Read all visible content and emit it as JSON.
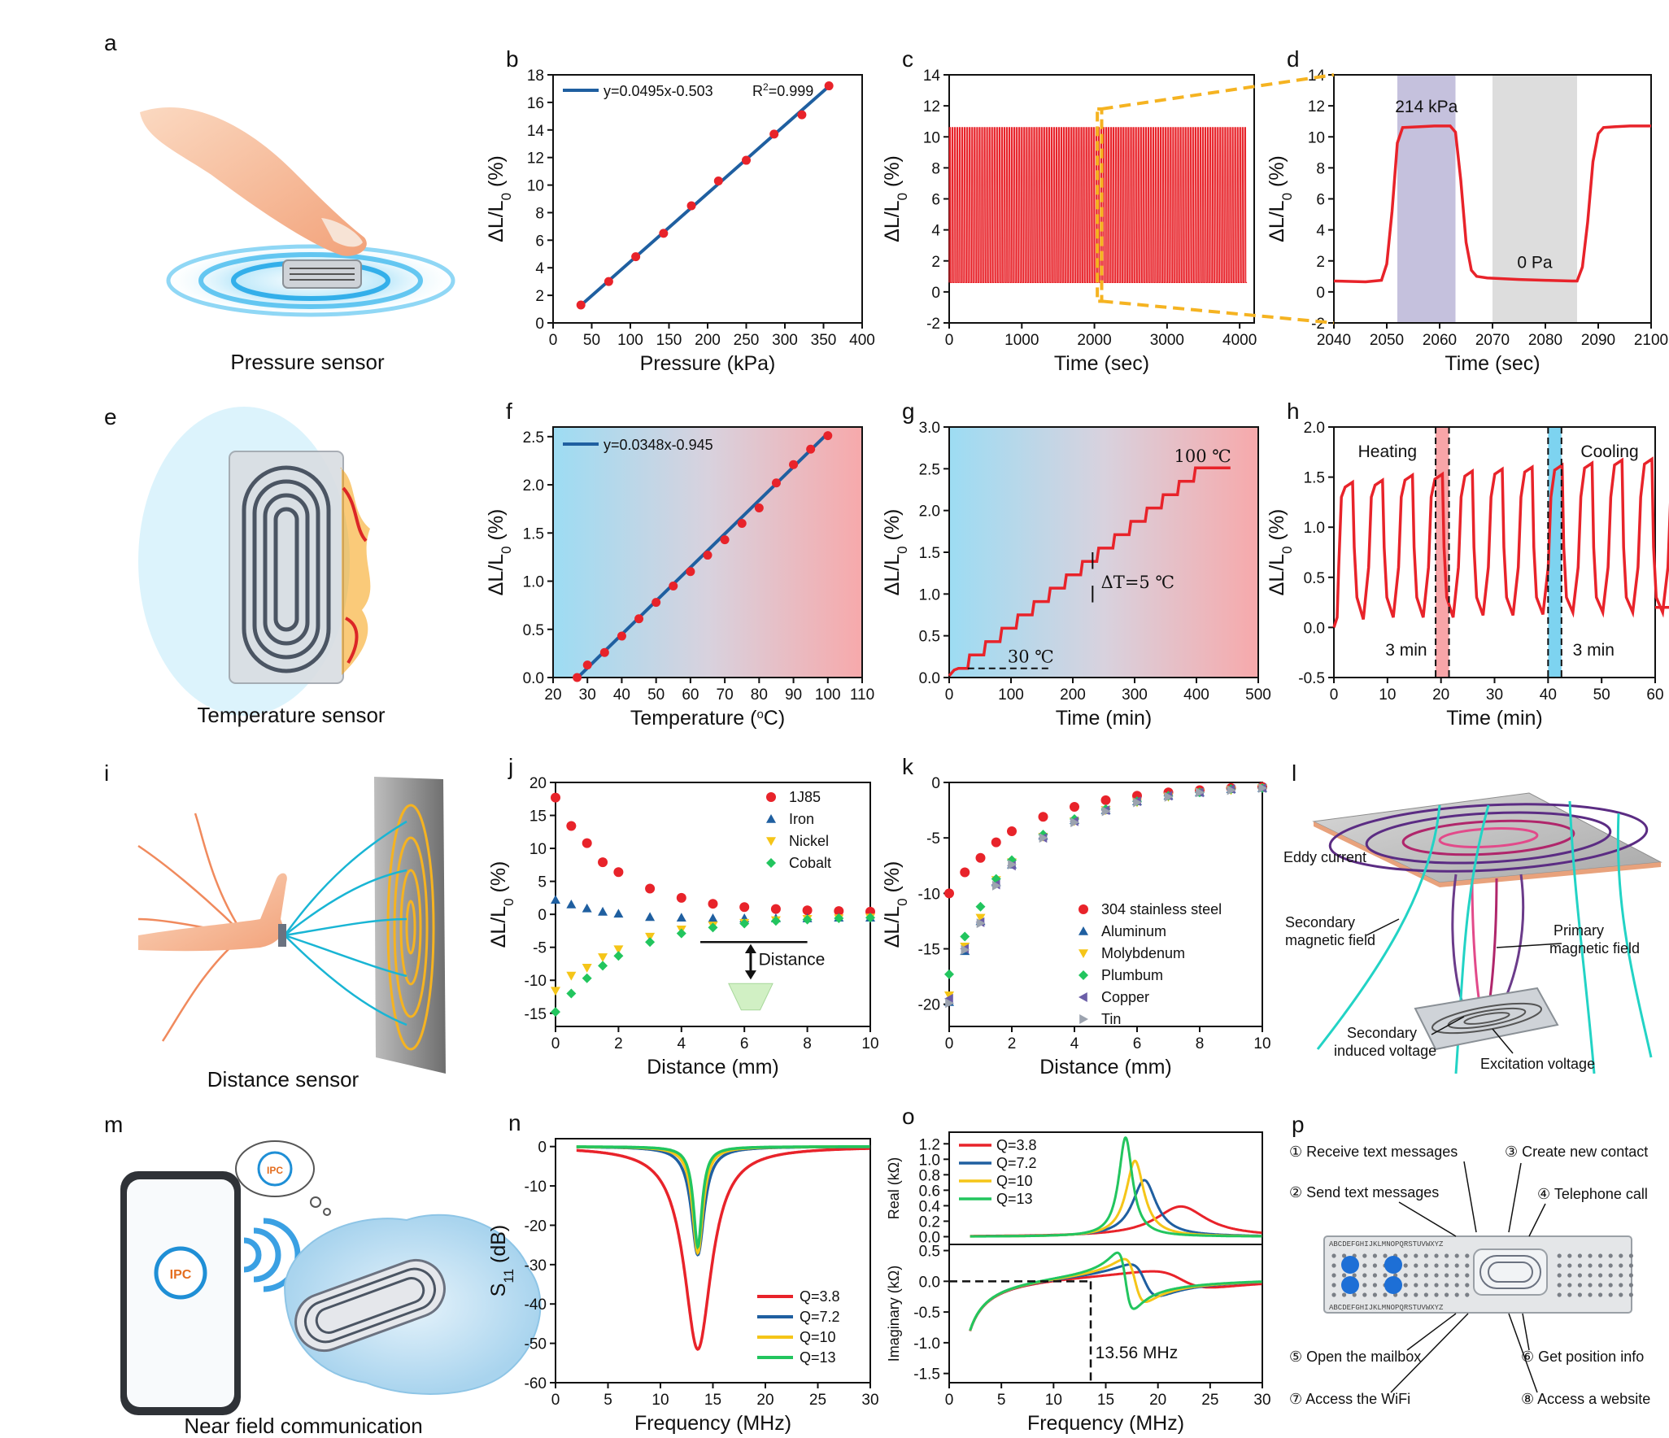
{
  "panels": {
    "a": {
      "label": "a",
      "caption": "Pressure sensor"
    },
    "e": {
      "label": "e",
      "caption": "Temperature sensor"
    },
    "i": {
      "label": "i",
      "caption": "Distance sensor"
    },
    "m": {
      "label": "m",
      "caption": "Near field communication",
      "logo_text": "IPC"
    },
    "l": {
      "label": "l",
      "annotations": [
        "Eddy current",
        "Secondary",
        "magnetic field",
        "Primary",
        "magnetic field",
        "Secondary",
        "induced voltage",
        "Excitation voltage"
      ]
    },
    "p": {
      "label": "p",
      "functions": [
        "① Receive text messages",
        "② Send text messages",
        "③ Create new contact",
        "④ Telephone call",
        "⑤ Open the mailbox",
        "⑥ Get position info",
        "⑦ Access the WiFi",
        "⑧ Access a website"
      ],
      "board_letters": "ABCDEFGHIJKLMNOPQRSTUVWXYZ"
    }
  },
  "colors": {
    "red": "#e8232a",
    "blue": "#1f5fa0",
    "gold": "#f5c518",
    "green": "#22c55e",
    "purple": "#6b5ea8",
    "gray": "#9ca3af",
    "cyan": "#7dd3f0",
    "pink": "#f8a5a8",
    "accent_orange": "#f5b321"
  },
  "chart_data": [
    {
      "id": "b",
      "label": "b",
      "type": "scatter",
      "title": "",
      "xlabel": "Pressure (kPa)",
      "ylabel_parts": [
        "ΔL/L",
        "0",
        "(%)"
      ],
      "xlim": [
        0,
        400
      ],
      "ylim": [
        0,
        18
      ],
      "xticks": [
        "0",
        "50",
        "100",
        "150",
        "200",
        "250",
        "300",
        "350",
        "400"
      ],
      "yticks": [
        "0",
        "2",
        "4",
        "6",
        "8",
        "10",
        "12",
        "14",
        "16",
        "18"
      ],
      "fit": {
        "slope": 0.0495,
        "intercept": -0.503,
        "x_range": [
          36,
          357
        ]
      },
      "legend": {
        "fit_text": "y=0.0495x-0.503",
        "r2_prefix": "R",
        "r2_sup": "2",
        "r2_suffix": "=0.999"
      },
      "series": [
        {
          "name": "data",
          "x": [
            36,
            72,
            107,
            143,
            179,
            214,
            250,
            286,
            322,
            357
          ],
          "y": [
            1.3,
            3.0,
            4.8,
            6.5,
            8.5,
            10.3,
            11.8,
            13.7,
            15.1,
            17.2
          ]
        }
      ]
    },
    {
      "id": "c",
      "label": "c",
      "type": "line",
      "xlabel": "Time (sec)",
      "ylabel_parts": [
        "ΔL/L",
        "0",
        "(%)"
      ],
      "xlim": [
        0,
        4200
      ],
      "ylim": [
        -2,
        14
      ],
      "xticks": [
        "0",
        "1000",
        "2000",
        "3000",
        "4000"
      ],
      "yticks": [
        "-2",
        "0",
        "2",
        "4",
        "6",
        "8",
        "10",
        "12",
        "14"
      ],
      "cycles": 120,
      "x_range": [
        0,
        4100
      ],
      "high": 10.6,
      "low": 0.6,
      "zoom_window": [
        2040,
        2100
      ]
    },
    {
      "id": "d",
      "label": "d",
      "type": "line",
      "xlabel": "Time (sec)",
      "ylabel_parts": [
        "ΔL/L",
        "0",
        "(%)"
      ],
      "xlim": [
        2040,
        2100
      ],
      "ylim": [
        -2,
        14
      ],
      "xticks": [
        "2040",
        "2050",
        "2060",
        "2070",
        "2080",
        "2090",
        "2100"
      ],
      "yticks": [
        "-2",
        "0",
        "2",
        "4",
        "6",
        "8",
        "10",
        "12",
        "14"
      ],
      "annotations": [
        "214 kPa",
        "0 Pa"
      ],
      "shade_load": [
        2052,
        2063
      ],
      "shade_unload": [
        2070,
        2086
      ],
      "series": [
        {
          "name": "response",
          "x": [
            2040,
            2046,
            2049,
            2050,
            2051,
            2052,
            2053,
            2056,
            2059,
            2062,
            2063,
            2064,
            2065,
            2066,
            2067,
            2069,
            2075,
            2080,
            2085,
            2086,
            2087,
            2088,
            2089,
            2090,
            2091,
            2093,
            2096,
            2100
          ],
          "y": [
            0.7,
            0.65,
            0.75,
            1.8,
            5.2,
            9.6,
            10.6,
            10.65,
            10.7,
            10.7,
            10.3,
            7.2,
            3.2,
            1.4,
            1.0,
            0.9,
            0.8,
            0.75,
            0.7,
            0.7,
            1.6,
            4.5,
            8.4,
            10.2,
            10.6,
            10.65,
            10.7,
            10.7
          ]
        }
      ]
    },
    {
      "id": "f",
      "label": "f",
      "type": "scatter",
      "xlabel_parts": [
        "Temperature (",
        "o",
        "C)"
      ],
      "ylabel_parts": [
        "ΔL/L",
        "0",
        "(%)"
      ],
      "xlim": [
        20,
        110
      ],
      "ylim": [
        0,
        2.6
      ],
      "xticks": [
        "20",
        "30",
        "40",
        "50",
        "60",
        "70",
        "80",
        "90",
        "100",
        "110"
      ],
      "yticks": [
        "0.0",
        "0.5",
        "1.0",
        "1.5",
        "2.0",
        "2.5"
      ],
      "fit": {
        "slope": 0.0348,
        "intercept": -0.945,
        "x_range": [
          27,
          100
        ]
      },
      "legend": {
        "fit_text": "y=0.0348x-0.945"
      },
      "series": [
        {
          "name": "data",
          "x": [
            27,
            30,
            35,
            40,
            45,
            50,
            55,
            60,
            65,
            70,
            75,
            80,
            85,
            90,
            95,
            100
          ],
          "y": [
            0.0,
            0.13,
            0.26,
            0.43,
            0.61,
            0.78,
            0.95,
            1.1,
            1.27,
            1.43,
            1.6,
            1.76,
            2.02,
            2.21,
            2.37,
            2.51
          ]
        }
      ]
    },
    {
      "id": "g",
      "label": "g",
      "type": "line",
      "xlabel": "Time (min)",
      "ylabel_parts": [
        "ΔL/L",
        "0",
        "(%)"
      ],
      "xlim": [
        0,
        500
      ],
      "ylim": [
        0,
        3.0
      ],
      "xticks": [
        "0",
        "100",
        "200",
        "300",
        "400",
        "500"
      ],
      "yticks": [
        "0.0",
        "0.5",
        "1.0",
        "1.5",
        "2.0",
        "2.5",
        "3.0"
      ],
      "annotations": [
        "100 ℃",
        "ΔT=5 ℃",
        "30 ℃"
      ],
      "steps": {
        "count": 15,
        "step_minutes": 29,
        "start": 0.11,
        "end": 2.51,
        "end_time": 455
      }
    },
    {
      "id": "h",
      "label": "h",
      "type": "line",
      "xlabel": "Time (min)",
      "ylabel_parts": [
        "ΔL/L",
        "0",
        "(%)"
      ],
      "xlim": [
        0,
        60
      ],
      "ylim": [
        -0.5,
        2.0
      ],
      "xticks": [
        "0",
        "10",
        "20",
        "30",
        "40",
        "50",
        "60"
      ],
      "yticks": [
        "-0.5",
        "0.0",
        "0.5",
        "1.0",
        "1.5",
        "2.0"
      ],
      "annotations": [
        "Heating",
        "Cooling",
        "3 min",
        "3 min"
      ],
      "heat_window": [
        19,
        21.5
      ],
      "cool_window": [
        40,
        42.5
      ],
      "period": 6.5,
      "peaks": [
        1.45,
        1.47,
        1.52,
        1.53,
        1.56,
        1.58,
        1.6,
        1.62,
        1.64,
        1.67,
        1.68,
        1.7
      ],
      "lows": [
        0.08,
        0.1,
        0.1,
        0.1,
        0.12,
        0.12,
        0.13,
        0.15,
        0.15,
        0.15,
        0.15,
        0.2
      ]
    },
    {
      "id": "j",
      "label": "j",
      "type": "scatter",
      "xlabel": "Distance (mm)",
      "ylabel_parts": [
        "ΔL/L",
        "0",
        "(%)"
      ],
      "xlim": [
        0,
        10
      ],
      "ylim": [
        -17,
        20
      ],
      "xticks": [
        "0",
        "2",
        "4",
        "6",
        "8",
        "10"
      ],
      "yticks": [
        "-15",
        "-10",
        "-5",
        "0",
        "5",
        "10",
        "15",
        "20"
      ],
      "annotations": [
        "Distance"
      ],
      "x": [
        0,
        0.5,
        1,
        1.5,
        2,
        3,
        4,
        5,
        6,
        7,
        8,
        9,
        10
      ],
      "series": [
        {
          "name": "1J85",
          "marker": "circle",
          "color": "#e8232a",
          "values": [
            17.7,
            13.4,
            10.8,
            7.9,
            6.4,
            3.9,
            2.5,
            1.6,
            1.1,
            0.8,
            0.6,
            0.5,
            0.4
          ]
        },
        {
          "name": "Iron",
          "marker": "triangle-up",
          "color": "#1f5fa0",
          "values": [
            2.2,
            1.5,
            0.9,
            0.4,
            0.1,
            -0.4,
            -0.5,
            -0.6,
            -0.6,
            -0.6,
            -0.6,
            -0.5,
            -0.5
          ]
        },
        {
          "name": "Nickel",
          "marker": "triangle-down",
          "color": "#f5c518",
          "values": [
            -11.6,
            -9.3,
            -8.1,
            -6.5,
            -5.3,
            -3.4,
            -2.3,
            -1.7,
            -1.3,
            -0.9,
            -0.7,
            -0.6,
            -0.5
          ]
        },
        {
          "name": "Cobalt",
          "marker": "diamond",
          "color": "#22c55e",
          "values": [
            -14.8,
            -12.0,
            -9.7,
            -7.8,
            -6.3,
            -4.2,
            -2.9,
            -2.0,
            -1.4,
            -1.0,
            -0.8,
            -0.6,
            -0.5
          ]
        }
      ]
    },
    {
      "id": "k",
      "label": "k",
      "type": "scatter",
      "xlabel": "Distance (mm)",
      "ylabel_parts": [
        "ΔL/L",
        "0",
        "(%)"
      ],
      "xlim": [
        0,
        10
      ],
      "ylim": [
        -22,
        0
      ],
      "xticks": [
        "0",
        "2",
        "4",
        "6",
        "8",
        "10"
      ],
      "yticks": [
        "-20",
        "-15",
        "-10",
        "-5",
        "0"
      ],
      "x": [
        0,
        0.5,
        1,
        1.5,
        2,
        3,
        4,
        5,
        6,
        7,
        8,
        9,
        10
      ],
      "series": [
        {
          "name": "304 stainless steel",
          "marker": "circle",
          "color": "#e8232a",
          "values": [
            -10.0,
            -8.1,
            -6.8,
            -5.4,
            -4.4,
            -3.1,
            -2.2,
            -1.6,
            -1.2,
            -0.9,
            -0.7,
            -0.5,
            -0.4
          ]
        },
        {
          "name": "Aluminum",
          "marker": "triangle-up",
          "color": "#1f5fa0",
          "values": [
            -19.8,
            -15.2,
            -12.5,
            -9.0,
            -7.4,
            -4.8,
            -3.4,
            -2.5,
            -1.7,
            -1.2,
            -0.9,
            -0.6,
            -0.5
          ]
        },
        {
          "name": "Molybdenum",
          "marker": "triangle-down",
          "color": "#f5c518",
          "values": [
            -19.2,
            -14.8,
            -12.2,
            -8.8,
            -7.2,
            -4.9,
            -3.5,
            -2.5,
            -1.8,
            -1.3,
            -0.9,
            -0.7,
            -0.5
          ]
        },
        {
          "name": "Plumbum",
          "marker": "diamond",
          "color": "#22c55e",
          "values": [
            -17.3,
            -13.9,
            -11.2,
            -8.7,
            -7.0,
            -4.7,
            -3.3,
            -2.4,
            -1.7,
            -1.2,
            -0.9,
            -0.6,
            -0.5
          ]
        },
        {
          "name": "Copper",
          "marker": "triangle-left",
          "color": "#6b5ea8",
          "values": [
            -19.5,
            -15.0,
            -12.6,
            -9.2,
            -7.5,
            -5.0,
            -3.5,
            -2.5,
            -1.7,
            -1.2,
            -0.9,
            -0.6,
            -0.5
          ]
        },
        {
          "name": "Tin",
          "marker": "triangle-right",
          "color": "#9ca3af",
          "values": [
            -19.9,
            -15.1,
            -12.7,
            -9.3,
            -7.4,
            -5.0,
            -3.6,
            -2.6,
            -1.8,
            -1.3,
            -0.9,
            -0.7,
            -0.5
          ]
        }
      ]
    },
    {
      "id": "n",
      "label": "n",
      "type": "line",
      "xlabel": "Frequency (MHz)",
      "ylabel_parts": [
        "S",
        "11",
        "(dB)"
      ],
      "xlim": [
        0,
        30
      ],
      "ylim": [
        -60,
        2
      ],
      "xticks": [
        "0",
        "5",
        "10",
        "15",
        "20",
        "25",
        "30"
      ],
      "yticks": [
        "-60",
        "-50",
        "-40",
        "-30",
        "-20",
        "-10",
        "0"
      ],
      "f0": 13.56,
      "x_range": [
        2,
        30
      ],
      "series": [
        {
          "name": "Q=3.8",
          "color": "#e8232a",
          "depth": 51.5,
          "width": 1.6
        },
        {
          "name": "Q=7.2",
          "color": "#1f5fa0",
          "depth": 27.5,
          "width": 0.75
        },
        {
          "name": "Q=10",
          "color": "#f5c518",
          "depth": 27.0,
          "width": 0.6
        },
        {
          "name": "Q=13",
          "color": "#22c55e",
          "depth": 25.5,
          "width": 0.5
        }
      ]
    },
    {
      "id": "o",
      "label": "o",
      "type": "line",
      "xlabel": "Frequency (MHz)",
      "ylabel_top": "Real (kΩ)",
      "ylabel_bottom": "Imaginary (kΩ)",
      "xlim": [
        0,
        30
      ],
      "top_ylim": [
        -0.1,
        1.35
      ],
      "bottom_ylim": [
        -1.65,
        0.6
      ],
      "xticks": [
        "0",
        "5",
        "10",
        "15",
        "20",
        "25",
        "30"
      ],
      "top_yticks": [
        "0.0",
        "0.2",
        "0.4",
        "0.6",
        "0.8",
        "1.0",
        "1.2"
      ],
      "bottom_yticks": [
        "-1.5",
        "-1.0",
        "-0.5",
        "0.0",
        "0.5"
      ],
      "annotations": [
        "13.56 MHz"
      ],
      "x_range": [
        2,
        30
      ],
      "series": [
        {
          "name": "Q=3.8",
          "color": "#e8232a",
          "f0": 22.2,
          "width": 3.0,
          "peak": 0.39
        },
        {
          "name": "Q=7.2",
          "color": "#1f5fa0",
          "f0": 18.7,
          "width": 1.4,
          "peak": 0.73
        },
        {
          "name": "Q=10",
          "color": "#f5c518",
          "f0": 17.8,
          "width": 1.05,
          "peak": 0.98
        },
        {
          "name": "Q=13",
          "color": "#22c55e",
          "f0": 16.9,
          "width": 0.8,
          "peak": 1.28
        }
      ]
    }
  ]
}
